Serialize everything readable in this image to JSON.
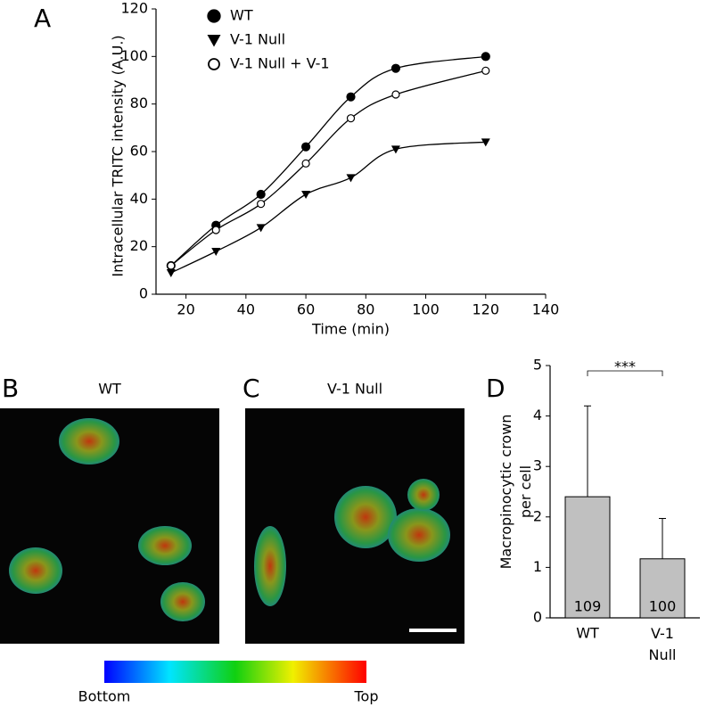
{
  "chart_data": [
    {
      "type": "scatter",
      "panel": "A",
      "x_label": "Time (min)",
      "y_label": "Intracellular TRITC intensity (A.U.)",
      "x": [
        15,
        30,
        45,
        60,
        75,
        90,
        120
      ],
      "series": [
        {
          "name": "WT",
          "color": "#000000",
          "marker": "filled-circle",
          "values": [
            12,
            29,
            42,
            62,
            83,
            95,
            100
          ]
        },
        {
          "name": "V-1 Null",
          "color": "#000000",
          "marker": "triangle-down",
          "values": [
            9,
            18,
            28,
            42,
            49,
            61,
            64
          ]
        },
        {
          "name": "V-1 Null + V-1",
          "color": "#000000",
          "marker": "open-circle",
          "values": [
            12,
            27,
            38,
            55,
            74,
            84,
            94
          ]
        }
      ],
      "xlim": [
        10,
        140
      ],
      "xticks": [
        20,
        40,
        60,
        80,
        100,
        120,
        140
      ],
      "ylim": [
        0,
        120
      ],
      "yticks": [
        0,
        20,
        40,
        60,
        80,
        100,
        120
      ],
      "fit_lines": true,
      "legend": "top-left"
    },
    {
      "type": "bar",
      "panel": "D",
      "y_label": "Macropinocytic crown per cell",
      "categories": [
        "WT",
        "V-1 Null"
      ],
      "values": [
        2.4,
        1.17
      ],
      "errors": [
        1.8,
        0.8
      ],
      "n": [
        109,
        100
      ],
      "color": "#c0c0c0",
      "annotation": "***",
      "ylim": [
        0,
        5
      ],
      "yticks": [
        0,
        1,
        2,
        3,
        4,
        5
      ]
    }
  ],
  "images": [
    {
      "panel": "B",
      "title": "WT"
    },
    {
      "panel": "C",
      "title": "V-1 Null"
    }
  ],
  "colorbar": {
    "low": "Bottom",
    "high": "Top"
  }
}
